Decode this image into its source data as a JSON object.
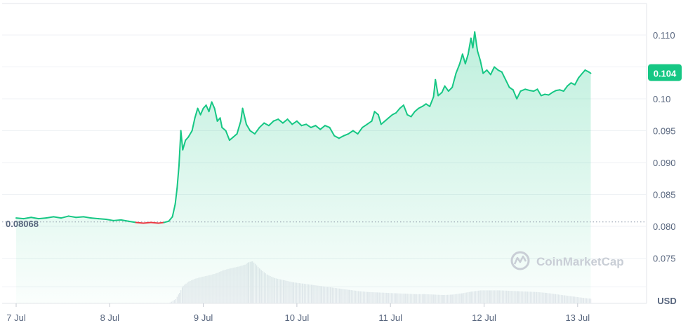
{
  "chart_data": {
    "type": "area",
    "x_labels": [
      "7 Jul",
      "8 Jul",
      "9 Jul",
      "10 Jul",
      "11 Jul",
      "12 Jul",
      "13 Jul"
    ],
    "ylim": [
      0.0705,
      0.1145
    ],
    "y_ticks": [
      {
        "value": 0.11,
        "label": "0.110"
      },
      {
        "value": 0.1,
        "label": "0.10"
      },
      {
        "value": 0.095,
        "label": "0.095"
      },
      {
        "value": 0.09,
        "label": "0.090"
      },
      {
        "value": 0.085,
        "label": "0.085"
      },
      {
        "value": 0.08,
        "label": "0.080"
      },
      {
        "value": 0.075,
        "label": "0.075"
      }
    ],
    "currency_label": "USD",
    "reference_price": {
      "value": 0.08068,
      "label": "0.08068"
    },
    "current_price": {
      "value": 0.104,
      "label": "0.104"
    },
    "colors": {
      "up": "#16c784",
      "down": "#ea3943",
      "grid": "#eff2f5",
      "text": "#58667e",
      "volume": "#e6e9ee"
    },
    "watermark": "CoinMarketCap",
    "series": [
      {
        "values": [
          [
            0.0,
            0.0813
          ],
          [
            0.08,
            0.0812
          ],
          [
            0.16,
            0.0814
          ],
          [
            0.24,
            0.0812
          ],
          [
            0.32,
            0.0813
          ],
          [
            0.4,
            0.0815
          ],
          [
            0.48,
            0.0813
          ],
          [
            0.56,
            0.0816
          ],
          [
            0.64,
            0.0814
          ],
          [
            0.72,
            0.0815
          ],
          [
            0.8,
            0.0813
          ],
          [
            0.88,
            0.0812
          ],
          [
            0.96,
            0.0811
          ],
          [
            1.04,
            0.0809
          ],
          [
            1.12,
            0.081
          ],
          [
            1.2,
            0.0808
          ],
          [
            1.28,
            0.0806
          ],
          [
            1.36,
            0.0805
          ],
          [
            1.44,
            0.0806
          ],
          [
            1.52,
            0.0805
          ],
          [
            1.58,
            0.0806
          ],
          [
            1.63,
            0.0808
          ],
          [
            1.67,
            0.0815
          ],
          [
            1.7,
            0.0835
          ],
          [
            1.72,
            0.086
          ],
          [
            1.74,
            0.0895
          ],
          [
            1.76,
            0.095
          ],
          [
            1.78,
            0.092
          ],
          [
            1.81,
            0.0935
          ],
          [
            1.84,
            0.094
          ],
          [
            1.88,
            0.095
          ],
          [
            1.91,
            0.097
          ],
          [
            1.94,
            0.0985
          ],
          [
            1.97,
            0.0975
          ],
          [
            2.0,
            0.0985
          ],
          [
            2.03,
            0.099
          ],
          [
            2.06,
            0.098
          ],
          [
            2.09,
            0.0995
          ],
          [
            2.12,
            0.0985
          ],
          [
            2.15,
            0.0965
          ],
          [
            2.18,
            0.097
          ],
          [
            2.2,
            0.0955
          ],
          [
            2.24,
            0.095
          ],
          [
            2.28,
            0.0935
          ],
          [
            2.32,
            0.094
          ],
          [
            2.36,
            0.0945
          ],
          [
            2.4,
            0.0965
          ],
          [
            2.42,
            0.0985
          ],
          [
            2.46,
            0.096
          ],
          [
            2.5,
            0.095
          ],
          [
            2.55,
            0.0945
          ],
          [
            2.6,
            0.0955
          ],
          [
            2.65,
            0.0962
          ],
          [
            2.7,
            0.0958
          ],
          [
            2.75,
            0.0965
          ],
          [
            2.8,
            0.0968
          ],
          [
            2.85,
            0.0962
          ],
          [
            2.9,
            0.0968
          ],
          [
            2.95,
            0.096
          ],
          [
            3.0,
            0.0965
          ],
          [
            3.05,
            0.0958
          ],
          [
            3.1,
            0.096
          ],
          [
            3.15,
            0.0955
          ],
          [
            3.2,
            0.0958
          ],
          [
            3.25,
            0.0952
          ],
          [
            3.3,
            0.0958
          ],
          [
            3.35,
            0.0955
          ],
          [
            3.4,
            0.0942
          ],
          [
            3.45,
            0.0938
          ],
          [
            3.5,
            0.0942
          ],
          [
            3.55,
            0.0945
          ],
          [
            3.6,
            0.095
          ],
          [
            3.65,
            0.0945
          ],
          [
            3.7,
            0.0955
          ],
          [
            3.75,
            0.096
          ],
          [
            3.8,
            0.0965
          ],
          [
            3.83,
            0.098
          ],
          [
            3.87,
            0.0975
          ],
          [
            3.9,
            0.096
          ],
          [
            3.94,
            0.0965
          ],
          [
            3.98,
            0.097
          ],
          [
            4.02,
            0.0975
          ],
          [
            4.06,
            0.0978
          ],
          [
            4.1,
            0.0985
          ],
          [
            4.14,
            0.099
          ],
          [
            4.18,
            0.0975
          ],
          [
            4.22,
            0.0972
          ],
          [
            4.26,
            0.098
          ],
          [
            4.3,
            0.0985
          ],
          [
            4.34,
            0.0988
          ],
          [
            4.38,
            0.0992
          ],
          [
            4.42,
            0.0988
          ],
          [
            4.46,
            0.1003
          ],
          [
            4.48,
            0.103
          ],
          [
            4.51,
            0.1005
          ],
          [
            4.55,
            0.101
          ],
          [
            4.58,
            0.102
          ],
          [
            4.62,
            0.1012
          ],
          [
            4.66,
            0.1018
          ],
          [
            4.7,
            0.104
          ],
          [
            4.74,
            0.1055
          ],
          [
            4.77,
            0.107
          ],
          [
            4.8,
            0.1055
          ],
          [
            4.83,
            0.107
          ],
          [
            4.86,
            0.1095
          ],
          [
            4.88,
            0.108
          ],
          [
            4.9,
            0.1105
          ],
          [
            4.93,
            0.1075
          ],
          [
            4.96,
            0.106
          ],
          [
            4.99,
            0.104
          ],
          [
            5.03,
            0.1045
          ],
          [
            5.07,
            0.1038
          ],
          [
            5.11,
            0.105
          ],
          [
            5.15,
            0.1045
          ],
          [
            5.19,
            0.1042
          ],
          [
            5.23,
            0.103
          ],
          [
            5.27,
            0.1018
          ],
          [
            5.31,
            0.1014
          ],
          [
            5.35,
            0.1
          ],
          [
            5.39,
            0.1012
          ],
          [
            5.44,
            0.1015
          ],
          [
            5.49,
            0.1013
          ],
          [
            5.53,
            0.1012
          ],
          [
            5.57,
            0.1015
          ],
          [
            5.61,
            0.1005
          ],
          [
            5.65,
            0.1007
          ],
          [
            5.69,
            0.1006
          ],
          [
            5.73,
            0.101
          ],
          [
            5.77,
            0.1013
          ],
          [
            5.81,
            0.1014
          ],
          [
            5.85,
            0.1012
          ],
          [
            5.89,
            0.102
          ],
          [
            5.93,
            0.1025
          ],
          [
            5.97,
            0.1022
          ],
          [
            6.01,
            0.1033
          ],
          [
            6.05,
            0.104
          ],
          [
            6.08,
            0.1045
          ],
          [
            6.12,
            0.1042
          ],
          [
            6.14,
            0.104
          ]
        ]
      }
    ],
    "volume": [
      [
        1.64,
        0.02
      ],
      [
        1.7,
        0.1
      ],
      [
        1.74,
        0.25
      ],
      [
        1.78,
        0.42
      ],
      [
        1.84,
        0.52
      ],
      [
        1.9,
        0.58
      ],
      [
        1.96,
        0.62
      ],
      [
        2.02,
        0.65
      ],
      [
        2.08,
        0.68
      ],
      [
        2.14,
        0.72
      ],
      [
        2.2,
        0.78
      ],
      [
        2.26,
        0.82
      ],
      [
        2.32,
        0.85
      ],
      [
        2.38,
        0.88
      ],
      [
        2.44,
        0.92
      ],
      [
        2.48,
        0.98
      ],
      [
        2.52,
        1.0
      ],
      [
        2.55,
        0.94
      ],
      [
        2.6,
        0.82
      ],
      [
        2.68,
        0.68
      ],
      [
        2.76,
        0.6
      ],
      [
        2.86,
        0.55
      ],
      [
        2.96,
        0.5
      ],
      [
        3.06,
        0.47
      ],
      [
        3.16,
        0.44
      ],
      [
        3.26,
        0.41
      ],
      [
        3.36,
        0.38
      ],
      [
        3.46,
        0.35
      ],
      [
        3.56,
        0.32
      ],
      [
        3.66,
        0.29
      ],
      [
        3.76,
        0.27
      ],
      [
        3.86,
        0.26
      ],
      [
        3.96,
        0.25
      ],
      [
        4.06,
        0.24
      ],
      [
        4.16,
        0.23
      ],
      [
        4.26,
        0.22
      ],
      [
        4.36,
        0.22
      ],
      [
        4.46,
        0.21
      ],
      [
        4.56,
        0.2
      ],
      [
        4.66,
        0.21
      ],
      [
        4.76,
        0.24
      ],
      [
        4.86,
        0.28
      ],
      [
        4.96,
        0.31
      ],
      [
        5.06,
        0.31
      ],
      [
        5.16,
        0.31
      ],
      [
        5.26,
        0.3
      ],
      [
        5.36,
        0.29
      ],
      [
        5.46,
        0.28
      ],
      [
        5.56,
        0.27
      ],
      [
        5.66,
        0.25
      ],
      [
        5.76,
        0.22
      ],
      [
        5.86,
        0.19
      ],
      [
        5.96,
        0.16
      ],
      [
        6.06,
        0.13
      ],
      [
        6.14,
        0.11
      ]
    ]
  }
}
